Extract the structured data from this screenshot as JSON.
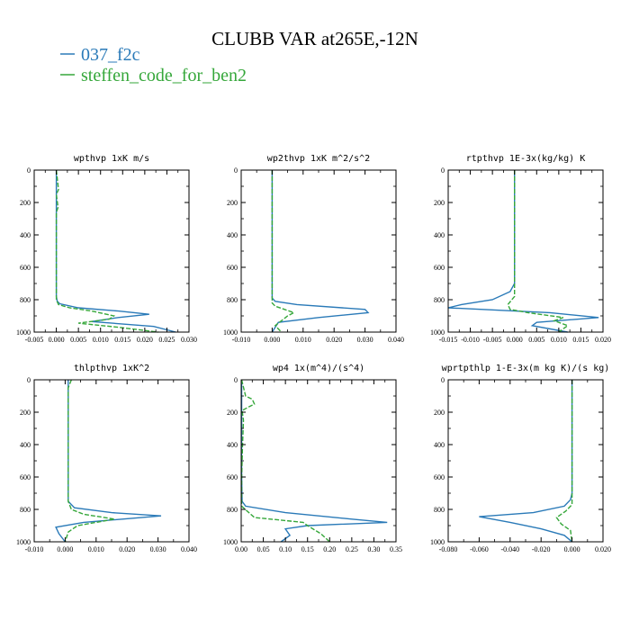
{
  "figure": {
    "title": "CLUBB VAR at265E,-12N",
    "legend": [
      {
        "label": "037_f2c",
        "color": "#2a7ab8",
        "dash": "solid"
      },
      {
        "label": "steffen_code_for_ben2",
        "color": "#35a73a",
        "dash": "dashed"
      }
    ]
  },
  "chart_data": [
    {
      "type": "line",
      "title": "wpthvp  1xK m/s",
      "xlim": [
        -0.005,
        0.03
      ],
      "xticks": [
        "-0.005",
        "0.000",
        "0.005",
        "0.010",
        "0.015",
        "0.020",
        "0.025",
        "0.030"
      ],
      "ylim": [
        1000,
        0
      ],
      "yticks": [
        "0",
        "200",
        "400",
        "600",
        "800",
        "1000"
      ],
      "series": [
        {
          "name": "037_f2c",
          "x": [
            0.0,
            0.0,
            0.0,
            0.0,
            0.0002,
            0.0008,
            0.005,
            0.014,
            0.021,
            0.014,
            0.008,
            0.022,
            0.027
          ],
          "y": [
            0,
            300,
            600,
            780,
            810,
            825,
            850,
            870,
            890,
            910,
            935,
            965,
            1000
          ]
        },
        {
          "name": "steffen_code_for_ben2",
          "x": [
            0.0,
            0.0005,
            0.0,
            0.0004,
            0.0,
            0.0,
            0.0,
            0.0005,
            0.003,
            0.008,
            0.013,
            0.012,
            0.005,
            0.014,
            0.023
          ],
          "y": [
            0,
            120,
            150,
            230,
            260,
            600,
            800,
            830,
            850,
            870,
            900,
            920,
            945,
            970,
            1000
          ]
        }
      ]
    },
    {
      "type": "line",
      "title": "wp2thvp  1xK m^2/s^2",
      "xlim": [
        -0.01,
        0.04
      ],
      "xticks": [
        "-0.010",
        "0.000",
        "0.010",
        "0.020",
        "0.030",
        "0.040"
      ],
      "ylim": [
        1000,
        0
      ],
      "yticks": [
        "0",
        "200",
        "400",
        "600",
        "800",
        "1000"
      ],
      "series": [
        {
          "name": "037_f2c",
          "x": [
            0.0,
            0.0,
            0.0,
            0.001,
            0.008,
            0.03,
            0.031,
            0.015,
            0.002,
            0.001,
            0.0
          ],
          "y": [
            0,
            300,
            790,
            810,
            830,
            860,
            880,
            910,
            940,
            970,
            1000
          ]
        },
        {
          "name": "steffen_code_for_ben2",
          "x": [
            0.0,
            0.0,
            0.0,
            0.001,
            0.004,
            0.007,
            0.005,
            0.003,
            0.001,
            0.003
          ],
          "y": [
            0,
            600,
            820,
            840,
            860,
            880,
            900,
            930,
            960,
            1000
          ]
        }
      ]
    },
    {
      "type": "line",
      "title": "rtpthvp  1E-3x(kg/kg) K",
      "xlim": [
        -0.015,
        0.02
      ],
      "xticks": [
        "-0.015",
        "-0.010",
        "-0.005",
        "0.000",
        "0.005",
        "0.010",
        "0.015",
        "0.020"
      ],
      "ylim": [
        1000,
        0
      ],
      "yticks": [
        "0",
        "200",
        "400",
        "600",
        "800",
        "1000"
      ],
      "series": [
        {
          "name": "037_f2c",
          "x": [
            0.0,
            0.0,
            -0.001,
            -0.005,
            -0.012,
            -0.015,
            0.008,
            0.019,
            0.005,
            0.004,
            0.012
          ],
          "y": [
            0,
            700,
            750,
            800,
            830,
            850,
            880,
            910,
            940,
            960,
            1000
          ]
        },
        {
          "name": "steffen_code_for_ben2",
          "x": [
            0.0,
            0.0,
            0.0,
            -0.0015,
            -0.001,
            0.003,
            0.011,
            0.009,
            0.012,
            0.01
          ],
          "y": [
            0,
            700,
            780,
            830,
            860,
            880,
            910,
            930,
            960,
            1000
          ]
        }
      ]
    },
    {
      "type": "line",
      "title": "thlpthvp  1xK^2",
      "xlim": [
        -0.01,
        0.04
      ],
      "xticks": [
        "-0.010",
        "0.000",
        "0.010",
        "0.020",
        "0.030",
        "0.040"
      ],
      "ylim": [
        1000,
        0
      ],
      "yticks": [
        "0",
        "200",
        "400",
        "600",
        "800",
        "1000"
      ],
      "series": [
        {
          "name": "037_f2c",
          "x": [
            0.001,
            0.001,
            0.001,
            0.001,
            0.003,
            0.015,
            0.031,
            0.006,
            -0.003,
            -0.002,
            0.0
          ],
          "y": [
            0,
            300,
            600,
            750,
            790,
            820,
            840,
            880,
            910,
            950,
            1000
          ]
        },
        {
          "name": "steffen_code_for_ben2",
          "x": [
            0.002,
            0.001,
            0.001,
            0.001,
            0.002,
            0.006,
            0.016,
            0.01,
            0.004,
            0.001,
            0.0
          ],
          "y": [
            0,
            50,
            300,
            750,
            800,
            830,
            860,
            880,
            900,
            940,
            1000
          ]
        }
      ]
    },
    {
      "type": "line",
      "title": "wp4   1x(m^4)/(s^4)",
      "xlim": [
        0.0,
        0.35
      ],
      "xticks": [
        "0.00",
        "0.05",
        "0.10",
        "0.15",
        "0.20",
        "0.25",
        "0.30",
        "0.35"
      ],
      "ylim": [
        1000,
        0
      ],
      "yticks": [
        "0",
        "200",
        "400",
        "600",
        "800",
        "1000"
      ],
      "series": [
        {
          "name": "037_f2c",
          "x": [
            0.001,
            0.001,
            0.002,
            0.01,
            0.1,
            0.25,
            0.33,
            0.15,
            0.1,
            0.11,
            0.09
          ],
          "y": [
            0,
            600,
            750,
            780,
            820,
            860,
            880,
            900,
            920,
            960,
            1000
          ]
        },
        {
          "name": "steffen_code_for_ben2",
          "x": [
            0.001,
            0.01,
            0.025,
            0.03,
            0.015,
            0.002,
            0.005,
            0.003,
            0.001,
            0.001,
            0.03,
            0.14,
            0.15,
            0.18,
            0.2
          ],
          "y": [
            0,
            100,
            120,
            150,
            170,
            190,
            250,
            400,
            600,
            780,
            850,
            880,
            900,
            950,
            1000
          ]
        }
      ]
    },
    {
      "type": "line",
      "title": "wprtpthlp  1-E-3x(m kg K)/(s kg)",
      "xlim": [
        -0.08,
        0.02
      ],
      "xticks": [
        "-0.080",
        "-0.060",
        "-0.040",
        "-0.020",
        "0.000",
        "0.020"
      ],
      "ylim": [
        1000,
        0
      ],
      "yticks": [
        "0",
        "200",
        "400",
        "600",
        "800",
        "1000"
      ],
      "series": [
        {
          "name": "037_f2c",
          "x": [
            0.0,
            0.0,
            -0.001,
            -0.005,
            -0.025,
            -0.06,
            -0.04,
            -0.02,
            -0.005,
            0.0
          ],
          "y": [
            0,
            700,
            740,
            780,
            820,
            845,
            880,
            920,
            960,
            1000
          ]
        },
        {
          "name": "steffen_code_for_ben2",
          "x": [
            0.0,
            0.0,
            0.0,
            -0.004,
            -0.01,
            -0.007,
            -0.001,
            0.0
          ],
          "y": [
            0,
            700,
            770,
            810,
            850,
            890,
            930,
            1000
          ]
        }
      ]
    }
  ]
}
